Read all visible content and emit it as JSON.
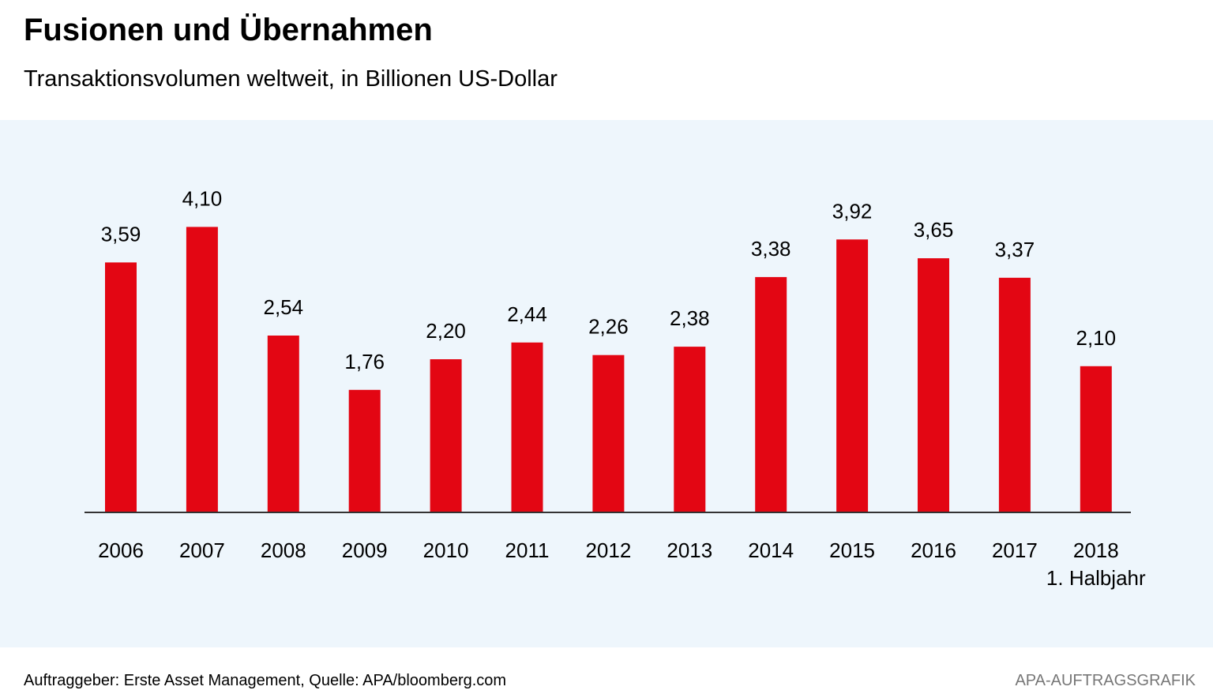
{
  "header": {
    "title": "Fusionen und Übernahmen",
    "subtitle": "Transaktionsvolumen weltweit, in Billionen US-Dollar"
  },
  "footer": {
    "source": "Auftraggeber: Erste Asset Management, Quelle: APA/bloomberg.com",
    "credit": "APA-AUFTRAGSGRAFIK"
  },
  "colors": {
    "bar": "#e30613",
    "axis": "#333333",
    "plot_background": "#eef6fc"
  },
  "chart_data": {
    "type": "bar",
    "title": "Fusionen und Übernahmen",
    "subtitle": "Transaktionsvolumen weltweit, in Billionen US-Dollar",
    "xlabel": "",
    "ylabel": "",
    "ylim": [
      0,
      4.5
    ],
    "grid": false,
    "legend": "none",
    "categories": [
      "2006",
      "2007",
      "2008",
      "2009",
      "2010",
      "2011",
      "2012",
      "2013",
      "2014",
      "2015",
      "2016",
      "2017",
      "2018"
    ],
    "category_notes": [
      "",
      "",
      "",
      "",
      "",
      "",
      "",
      "",
      "",
      "",
      "",
      "",
      "1. Halbjahr"
    ],
    "values": [
      3.59,
      4.1,
      2.54,
      1.76,
      2.2,
      2.44,
      2.26,
      2.38,
      3.38,
      3.92,
      3.65,
      3.37,
      2.1
    ],
    "value_labels": [
      "3,59",
      "4,10",
      "2,54",
      "1,76",
      "2,20",
      "2,44",
      "2,26",
      "2,38",
      "3,38",
      "3,92",
      "3,65",
      "3,37",
      "2,10"
    ]
  }
}
